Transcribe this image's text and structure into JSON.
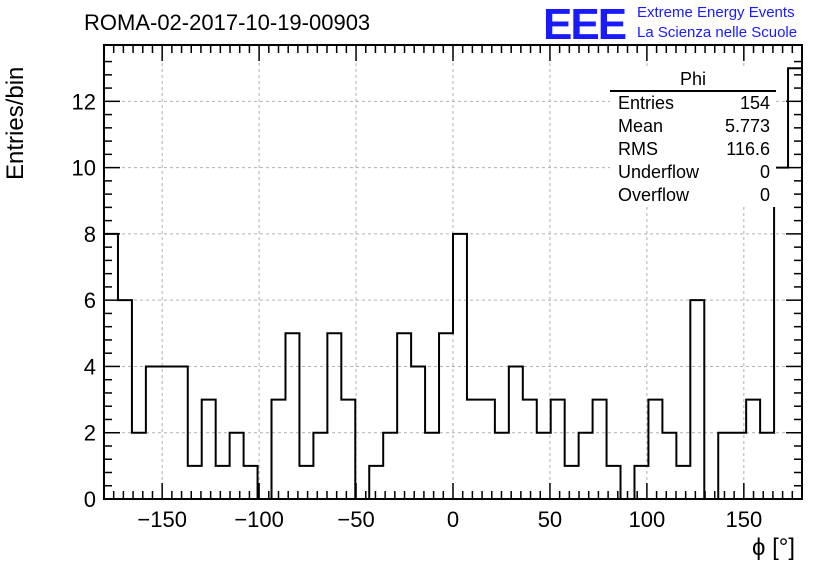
{
  "title": "ROMA-02-2017-10-19-00903",
  "logo": {
    "mark": "EEE",
    "line1": "Extreme Energy Events",
    "line2": "La Scienza nelle Scuole",
    "color": "#1a1aff"
  },
  "stats": {
    "name": "Phi",
    "rows": [
      {
        "label": "Entries",
        "value": "154"
      },
      {
        "label": "Mean",
        "value": "5.773"
      },
      {
        "label": "RMS",
        "value": "116.6"
      },
      {
        "label": "Underflow",
        "value": "0"
      },
      {
        "label": "Overflow",
        "value": "0"
      }
    ]
  },
  "chart_data": {
    "type": "bar",
    "histogram": true,
    "title": "ROMA-02-2017-10-19-00903",
    "xlabel": "ϕ [°]",
    "ylabel": "Entries/bin",
    "xlim": [
      -180,
      180
    ],
    "ylim": [
      0,
      13.7
    ],
    "grid": true,
    "bin_width": 7.2,
    "x_ticks": [
      -150,
      -100,
      -50,
      0,
      50,
      100,
      150
    ],
    "x_tick_labels": [
      "−150",
      "−100",
      "−50",
      "0",
      "50",
      "100",
      "150"
    ],
    "y_ticks": [
      0,
      2,
      4,
      6,
      8,
      10,
      12
    ],
    "y_tick_labels": [
      "0",
      "2",
      "4",
      "6",
      "8",
      "10",
      "12"
    ],
    "values": [
      8,
      6,
      2,
      4,
      4,
      4,
      1,
      3,
      1,
      2,
      1,
      0,
      3,
      5,
      1,
      2,
      5,
      3,
      0,
      1,
      2,
      5,
      4,
      2,
      5,
      8,
      3,
      3,
      2,
      4,
      3,
      2,
      3,
      1,
      2,
      3,
      1,
      0,
      1,
      3,
      2,
      1,
      6,
      0,
      2,
      2,
      3,
      2,
      10,
      13
    ]
  }
}
